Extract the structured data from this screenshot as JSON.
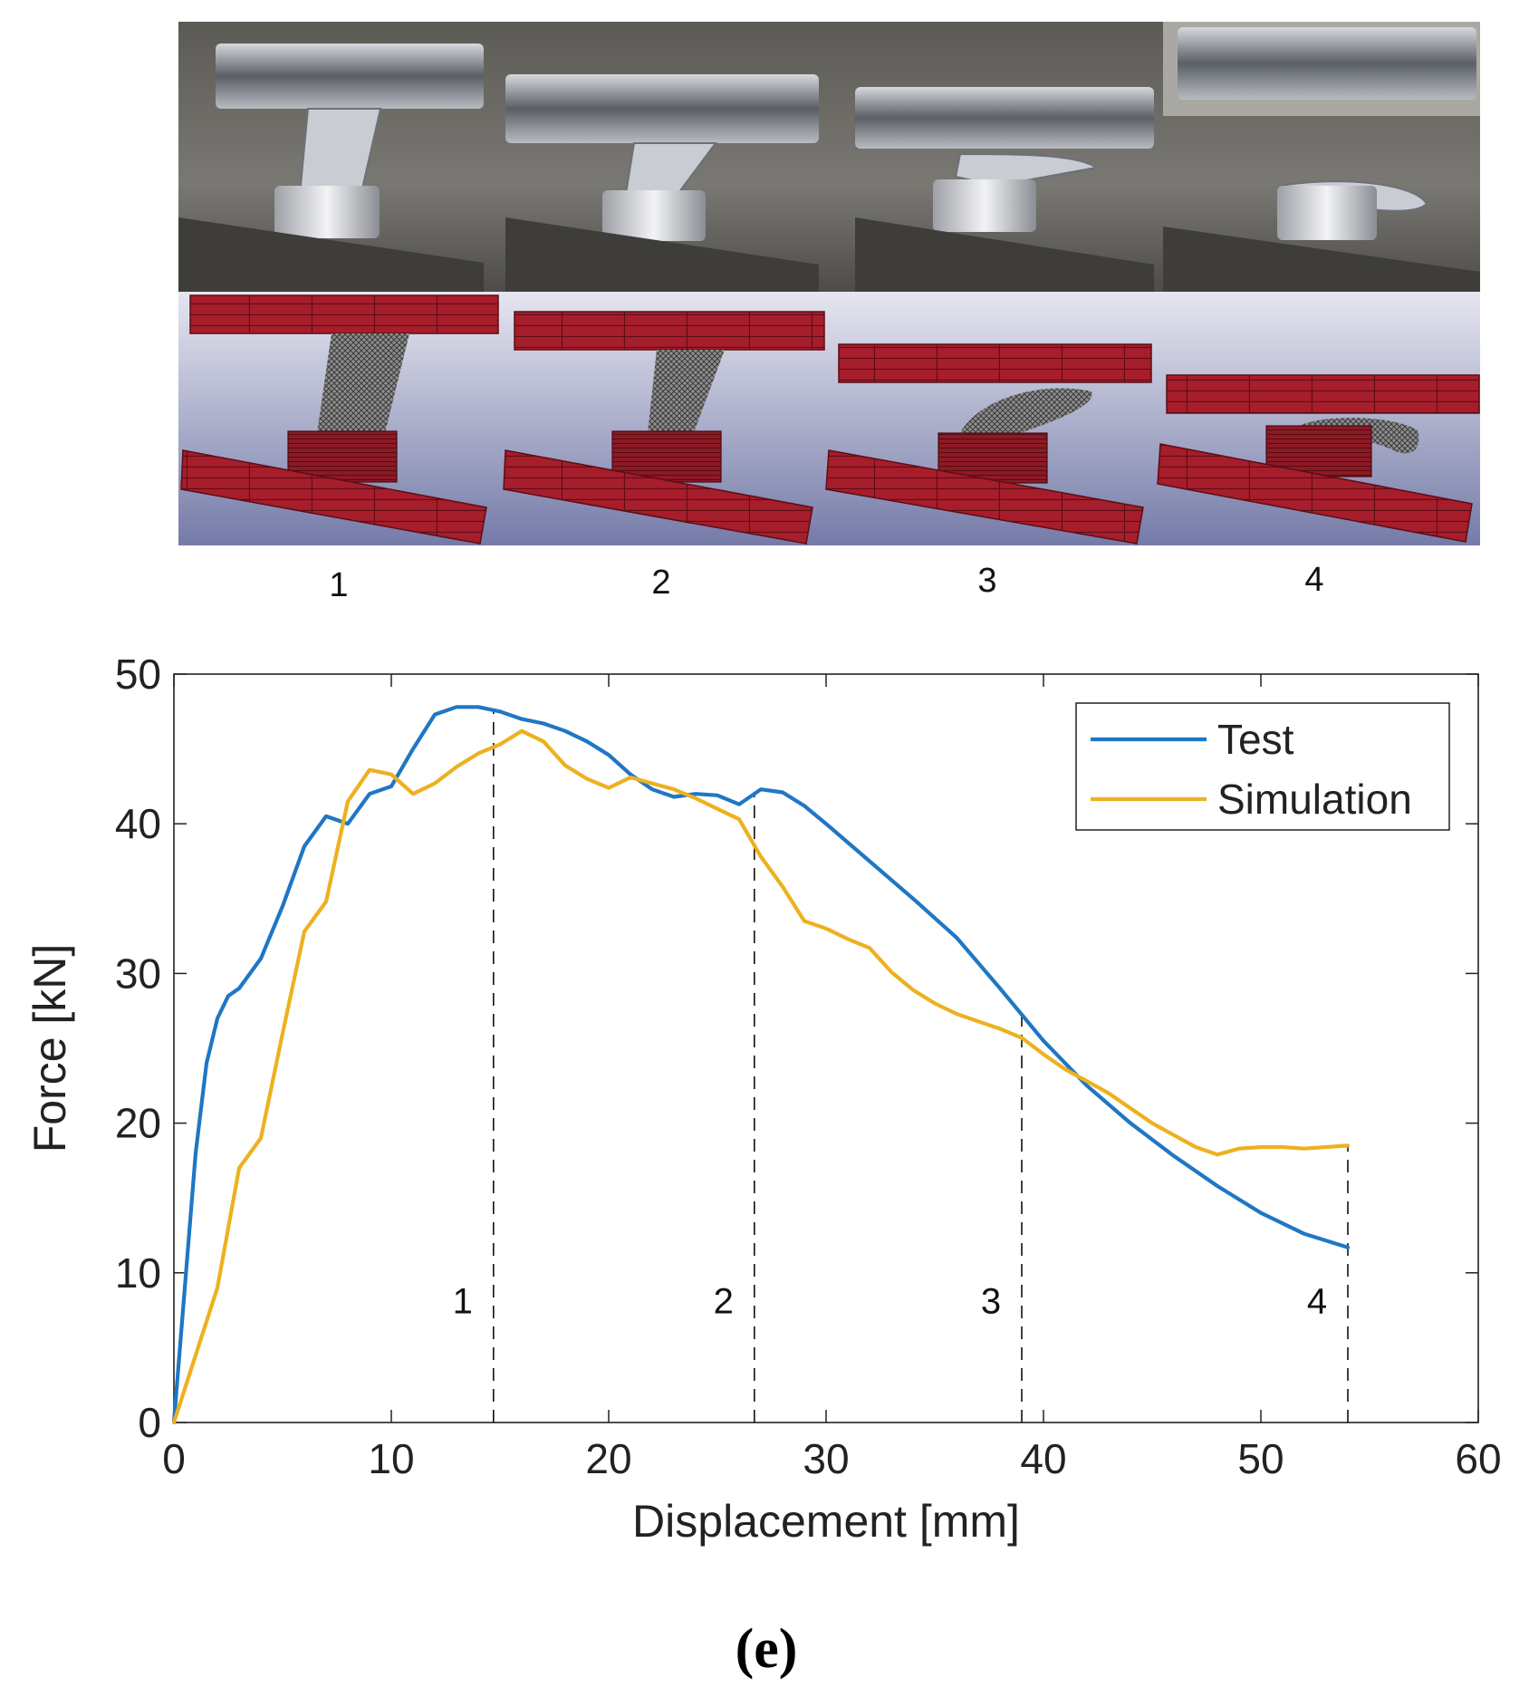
{
  "figure": {
    "panel_label_text": "e",
    "stage_labels": [
      "1",
      "2",
      "3",
      "4"
    ]
  },
  "colors": {
    "test": "#1f77c4",
    "simulation": "#edb120",
    "plate": "#a61d2b",
    "plate_grid": "#5e0d15",
    "sim_bg_top": "#e4e4ee",
    "sim_bg_bottom": "#757ba8",
    "photo_bg": "#6e6c66"
  },
  "chart_data": {
    "type": "line",
    "title": "",
    "xlabel": "Displacement [mm]",
    "ylabel": "Force [kN]",
    "xlim": [
      0,
      60
    ],
    "ylim": [
      0,
      50
    ],
    "xticks": [
      "0",
      "10",
      "20",
      "30",
      "40",
      "50",
      "60"
    ],
    "yticks": [
      "0",
      "10",
      "20",
      "30",
      "40",
      "50"
    ],
    "grid": false,
    "legend": {
      "location": "top-right",
      "entries": [
        "Test",
        "Simulation"
      ]
    },
    "series": [
      {
        "name": "Test",
        "x": [
          0,
          0.5,
          1,
          1.5,
          2,
          2.5,
          3,
          4,
          5,
          6,
          7,
          8,
          9,
          10,
          11,
          12,
          13,
          14,
          15,
          16,
          17,
          18,
          19,
          20,
          21,
          22,
          23,
          24,
          25,
          26,
          27,
          28,
          29,
          30,
          32,
          34,
          36,
          38,
          40,
          42,
          44,
          46,
          48,
          50,
          52,
          54
        ],
        "y": [
          0,
          9,
          18,
          24,
          27,
          28.5,
          29,
          31,
          34.5,
          38.5,
          40.5,
          40,
          42,
          42.5,
          45,
          47.3,
          47.8,
          47.8,
          47.5,
          47,
          46.7,
          46.2,
          45.5,
          44.6,
          43.3,
          42.3,
          41.8,
          42,
          41.9,
          41.3,
          42.3,
          42.1,
          41.2,
          40,
          37.5,
          35,
          32.4,
          29,
          25.5,
          22.5,
          20,
          17.8,
          15.8,
          14,
          12.6,
          11.7
        ]
      },
      {
        "name": "Simulation",
        "x": [
          0,
          1,
          2,
          3,
          4,
          5,
          6,
          7,
          8,
          9,
          10,
          11,
          12,
          13,
          14,
          15,
          16,
          17,
          18,
          19,
          20,
          21,
          22,
          23,
          24,
          25,
          26,
          27,
          28,
          29,
          30,
          31,
          32,
          33,
          34,
          35,
          36,
          37,
          38,
          39,
          40,
          41,
          42,
          43,
          44,
          45,
          46,
          47,
          48,
          49,
          50,
          51,
          52,
          53,
          54
        ],
        "y": [
          0,
          4.5,
          9,
          17,
          19,
          26,
          32.8,
          34.8,
          41.5,
          43.6,
          43.3,
          42,
          42.7,
          43.8,
          44.7,
          45.3,
          46.2,
          45.5,
          43.9,
          43,
          42.4,
          43.1,
          42.7,
          42.3,
          41.7,
          41,
          40.3,
          37.8,
          35.8,
          33.5,
          33,
          32.3,
          31.7,
          30.1,
          28.9,
          28,
          27.3,
          26.8,
          26.3,
          25.7,
          24.6,
          23.6,
          22.8,
          22,
          21,
          20,
          19.2,
          18.4,
          17.9,
          18.3,
          18.4,
          18.4,
          18.3,
          18.4,
          18.5
        ]
      }
    ],
    "markers": [
      {
        "label": "1",
        "x": 14.7
      },
      {
        "label": "2",
        "x": 26.7
      },
      {
        "label": "3",
        "x": 39
      },
      {
        "label": "4",
        "x": 54
      }
    ]
  }
}
